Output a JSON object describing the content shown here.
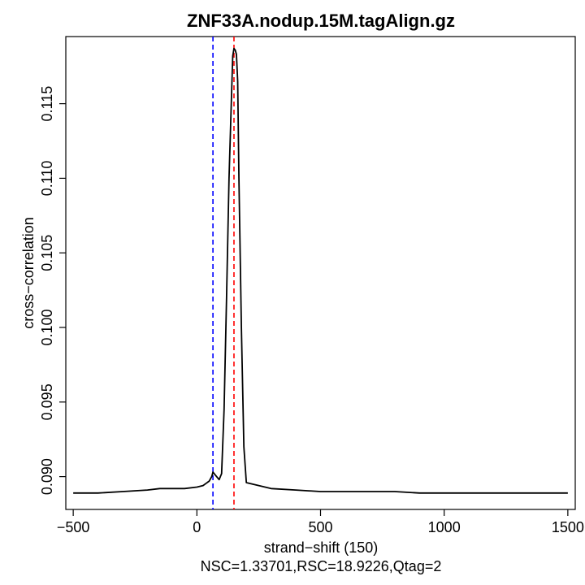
{
  "chart_data": {
    "type": "line",
    "title": "ZNF33A.nodup.15M.tagAlign.gz",
    "xlabel": "strand−shift (150)",
    "ylabel": "cross−correlation",
    "subtitle": "NSC=1.33701,RSC=18.9226,Qtag=2",
    "xlim": [
      -530,
      1530
    ],
    "ylim": [
      0.0878,
      0.1195
    ],
    "x_ticks": [
      -500,
      0,
      500,
      1000,
      1500
    ],
    "x_tick_labels": [
      "−500",
      "0",
      "500",
      "1000",
      "1500"
    ],
    "y_ticks": [
      0.09,
      0.095,
      0.1,
      0.105,
      0.11,
      0.115
    ],
    "y_tick_labels": [
      "0.090",
      "0.095",
      "0.100",
      "0.105",
      "0.110",
      "0.115"
    ],
    "vlines": [
      {
        "x": 65,
        "color": "#0000ff",
        "style": "dashed"
      },
      {
        "x": 150,
        "color": "#ff0000",
        "style": "dashed"
      }
    ],
    "series": [
      {
        "color": "#000000",
        "x": [
          -500,
          -400,
          -300,
          -200,
          -150,
          -100,
          -50,
          0,
          25,
          50,
          60,
          65,
          75,
          90,
          100,
          110,
          120,
          130,
          140,
          145,
          150,
          155,
          160,
          165,
          170,
          180,
          190,
          200,
          250,
          300,
          400,
          500,
          600,
          700,
          800,
          900,
          1000,
          1100,
          1200,
          1300,
          1400,
          1500
        ],
        "y": [
          0.0889,
          0.0889,
          0.089,
          0.0891,
          0.0892,
          0.0892,
          0.0892,
          0.0893,
          0.0894,
          0.0897,
          0.09,
          0.0903,
          0.0901,
          0.0898,
          0.0902,
          0.0945,
          0.102,
          0.11,
          0.1155,
          0.1182,
          0.1187,
          0.1186,
          0.1183,
          0.1165,
          0.11,
          0.1,
          0.092,
          0.0896,
          0.0894,
          0.0892,
          0.0891,
          0.089,
          0.089,
          0.089,
          0.089,
          0.0889,
          0.0889,
          0.0889,
          0.0889,
          0.0889,
          0.0889,
          0.0889
        ]
      }
    ]
  }
}
